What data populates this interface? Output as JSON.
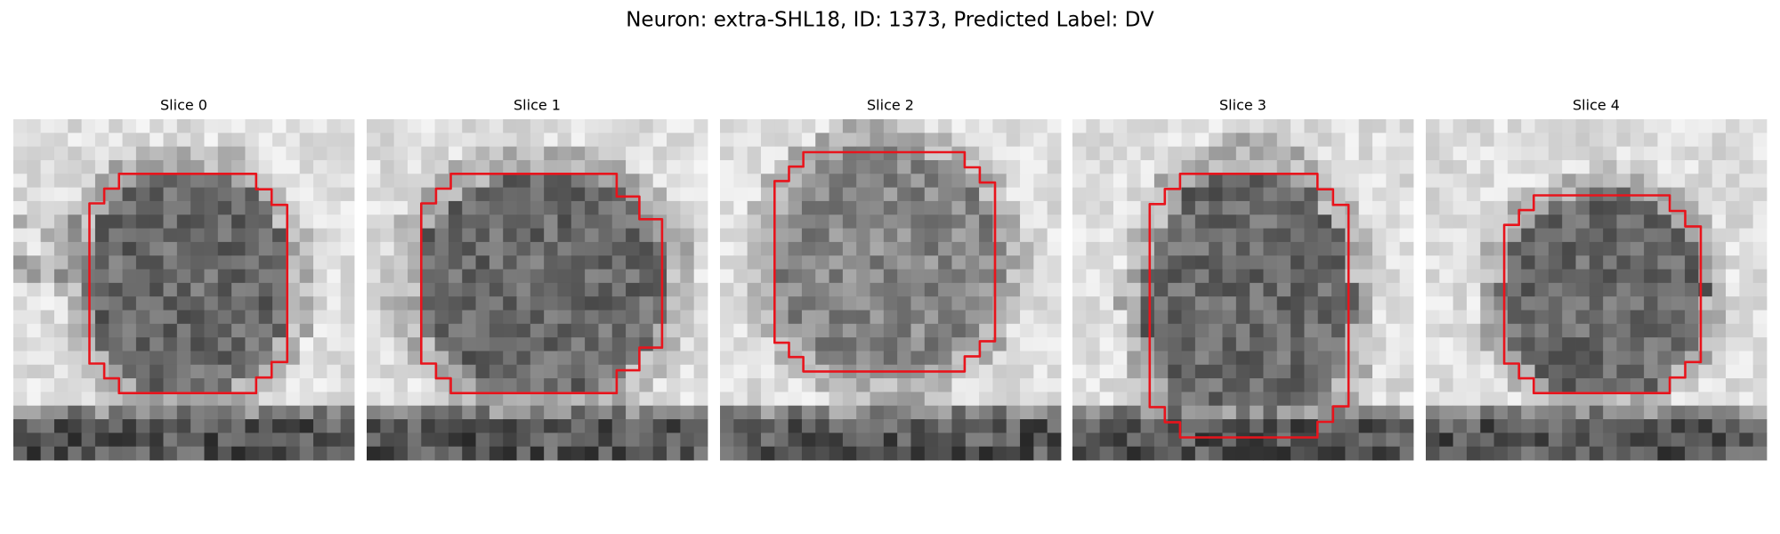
{
  "title": "Neuron: extra-SHL18, ID: 1373, Predicted Label: DV",
  "panels": [
    {
      "title": "Slice 0"
    },
    {
      "title": "Slice 1"
    },
    {
      "title": "Slice 2"
    },
    {
      "title": "Slice 3"
    },
    {
      "title": "Slice 4"
    }
  ]
}
